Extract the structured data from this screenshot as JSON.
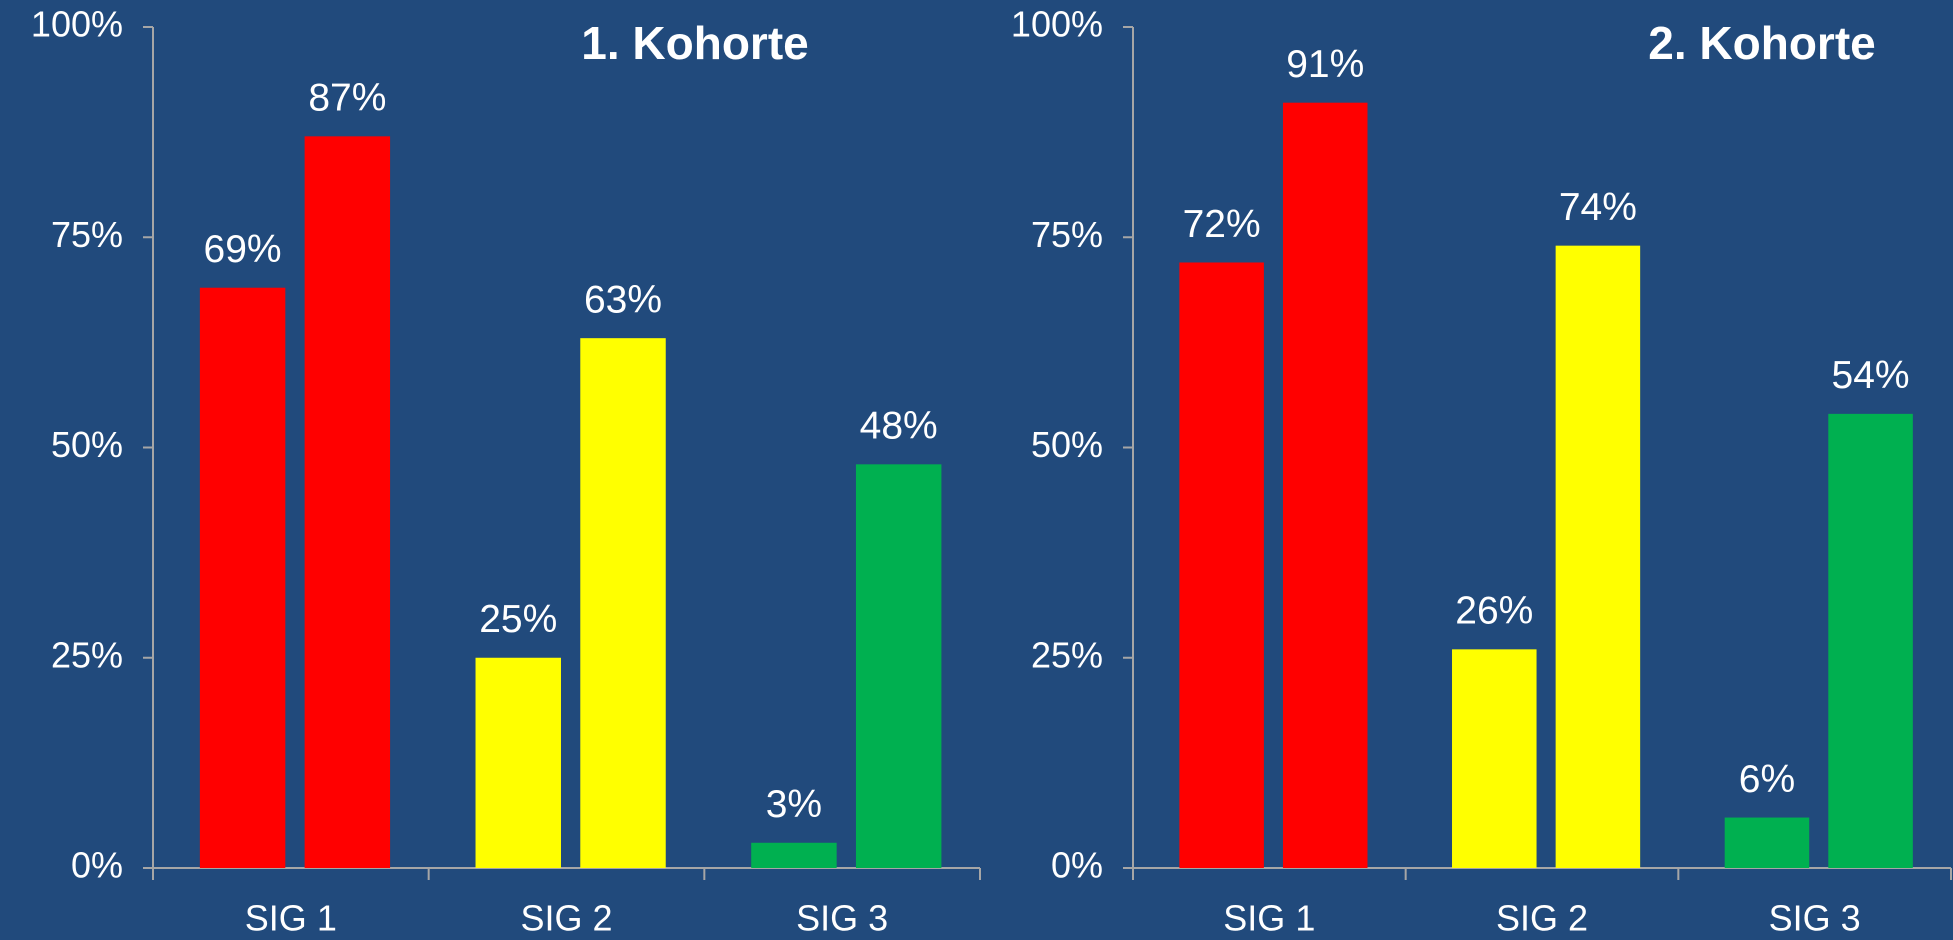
{
  "chart_data": [
    {
      "type": "bar",
      "title": "1. Kohorte",
      "categories": [
        "SIG 1",
        "SIG 2",
        "SIG 3"
      ],
      "colors": [
        "#ff0000",
        "#ffff00",
        "#00b050"
      ],
      "series": [
        {
          "values": [
            69,
            25,
            3
          ],
          "value_labels": [
            "69%",
            "25%",
            "3%"
          ]
        },
        {
          "values": [
            87,
            63,
            48
          ],
          "value_labels": [
            "87%",
            "63%",
            "48%"
          ]
        }
      ],
      "ylim": [
        0,
        100
      ],
      "yticks": [
        {
          "value": 0,
          "label": "0%"
        },
        {
          "value": 25,
          "label": "25%"
        },
        {
          "value": 50,
          "label": "50%"
        },
        {
          "value": 75,
          "label": "75%"
        },
        {
          "value": 100,
          "label": "100%"
        }
      ]
    },
    {
      "type": "bar",
      "title": "2. Kohorte",
      "categories": [
        "SIG 1",
        "SIG 2",
        "SIG 3"
      ],
      "colors": [
        "#ff0000",
        "#ffff00",
        "#00b050"
      ],
      "series": [
        {
          "values": [
            72,
            26,
            6
          ],
          "value_labels": [
            "72%",
            "26%",
            "6%"
          ]
        },
        {
          "values": [
            91,
            74,
            54
          ],
          "value_labels": [
            "91%",
            "74%",
            "54%"
          ]
        }
      ],
      "ylim": [
        0,
        100
      ],
      "yticks": [
        {
          "value": 0,
          "label": "0%"
        },
        {
          "value": 25,
          "label": "25%"
        },
        {
          "value": 50,
          "label": "50%"
        },
        {
          "value": 75,
          "label": "75%"
        },
        {
          "value": 100,
          "label": "100%"
        }
      ]
    }
  ]
}
